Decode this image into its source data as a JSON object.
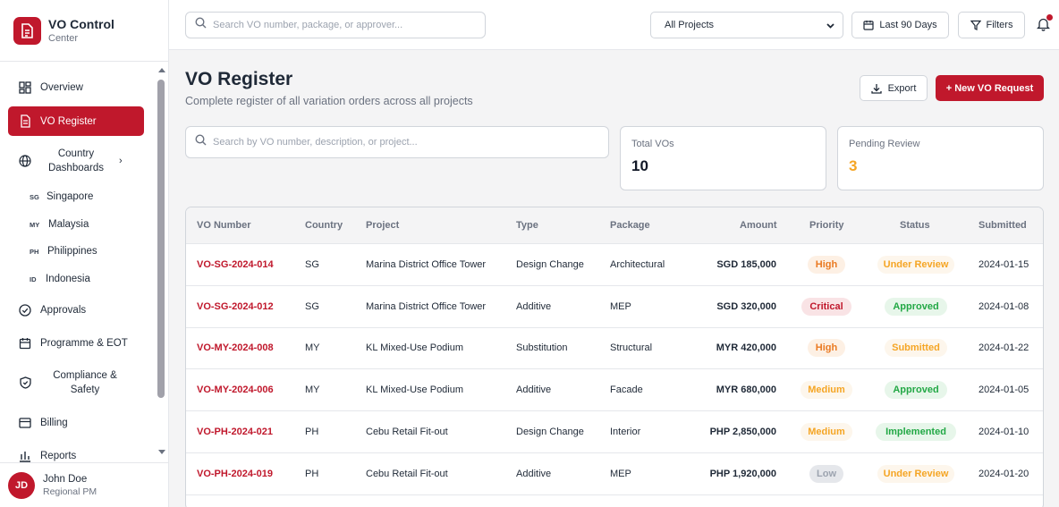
{
  "brand": {
    "title": "VO Control",
    "subtitle": "Center"
  },
  "nav": {
    "overview": "Overview",
    "vo_register": "VO Register",
    "country_dashboards": "Country Dashboards",
    "countries": [
      {
        "code": "SG",
        "name": "Singapore"
      },
      {
        "code": "MY",
        "name": "Malaysia"
      },
      {
        "code": "PH",
        "name": "Philippines"
      },
      {
        "code": "ID",
        "name": "Indonesia"
      }
    ],
    "approvals": "Approvals",
    "programme": "Programme & EOT",
    "compliance": "Compliance & Safety",
    "billing": "Billing",
    "reports": "Reports"
  },
  "user": {
    "initials": "JD",
    "name": "John Doe",
    "role": "Regional PM"
  },
  "topbar": {
    "search_placeholder": "Search VO number, package, or approver...",
    "project_filter": "All Projects",
    "date_range": "Last 90 Days",
    "filters": "Filters"
  },
  "page": {
    "title": "VO Register",
    "subtitle": "Complete register of all variation orders across all projects",
    "export": "Export",
    "new_request": "+ New VO Request",
    "search_placeholder": "Search by VO number, description, or project..."
  },
  "stats": [
    {
      "label": "Total VOs",
      "value": "10",
      "color": "#111827"
    },
    {
      "label": "Pending Review",
      "value": "3",
      "color": "#f5a524"
    }
  ],
  "table": {
    "headers": [
      "VO Number",
      "Country",
      "Project",
      "Type",
      "Package",
      "Amount",
      "Priority",
      "Status",
      "Submitted"
    ],
    "rows": [
      {
        "vo": "VO-SG-2024-014",
        "country": "SG",
        "project": "Marina District Office Tower",
        "type": "Design Change",
        "package": "Architectural",
        "amount": "SGD 185,000",
        "priority": "High",
        "status": "Under Review",
        "submitted": "2024-01-15"
      },
      {
        "vo": "VO-SG-2024-012",
        "country": "SG",
        "project": "Marina District Office Tower",
        "type": "Additive",
        "package": "MEP",
        "amount": "SGD 320,000",
        "priority": "Critical",
        "status": "Approved",
        "submitted": "2024-01-08"
      },
      {
        "vo": "VO-MY-2024-008",
        "country": "MY",
        "project": "KL Mixed-Use Podium",
        "type": "Substitution",
        "package": "Structural",
        "amount": "MYR 420,000",
        "priority": "High",
        "status": "Submitted",
        "submitted": "2024-01-22"
      },
      {
        "vo": "VO-MY-2024-006",
        "country": "MY",
        "project": "KL Mixed-Use Podium",
        "type": "Additive",
        "package": "Facade",
        "amount": "MYR 680,000",
        "priority": "Medium",
        "status": "Approved",
        "submitted": "2024-01-05"
      },
      {
        "vo": "VO-PH-2024-021",
        "country": "PH",
        "project": "Cebu Retail Fit-out",
        "type": "Design Change",
        "package": "Interior",
        "amount": "PHP 2,850,000",
        "priority": "Medium",
        "status": "Implemented",
        "submitted": "2024-01-10"
      },
      {
        "vo": "VO-PH-2024-019",
        "country": "PH",
        "project": "Cebu Retail Fit-out",
        "type": "Additive",
        "package": "MEP",
        "amount": "PHP 1,920,000",
        "priority": "Low",
        "status": "Under Review",
        "submitted": "2024-01-20"
      }
    ]
  },
  "colors": {
    "accent": "#c0182c",
    "high": {
      "bg": "#fdf0e4",
      "fg": "#ea7a22"
    },
    "critical": {
      "bg": "#f9e3e5",
      "fg": "#c0182c"
    },
    "medium": {
      "bg": "#fdf6ec",
      "fg": "#f5a524"
    },
    "low": {
      "bg": "#e5e7eb",
      "fg": "#9ca3af"
    },
    "under_review": {
      "bg": "#fdf6ec",
      "fg": "#f5a524"
    },
    "approved": {
      "bg": "#e7f6ea",
      "fg": "#22a845"
    },
    "submitted": {
      "bg": "#fdf6ec",
      "fg": "#f5a524"
    },
    "implemented": {
      "bg": "#e7f6ea",
      "fg": "#22a845"
    }
  }
}
